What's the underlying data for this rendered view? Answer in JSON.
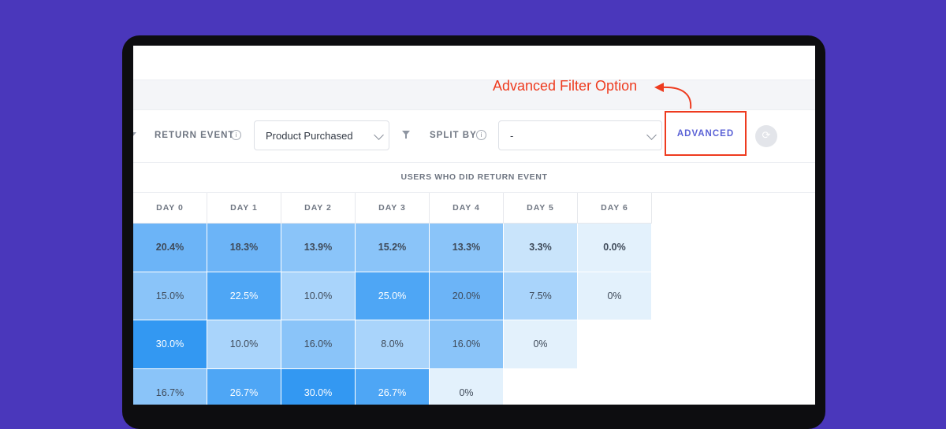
{
  "annotation": {
    "callout": "Advanced Filter Option",
    "color": "#ee3b1f"
  },
  "toolbar": {
    "return_event_label": "RETURN EVENT",
    "return_event_value": "Product Purchased",
    "split_by_label": "SPLIT BY",
    "split_by_value": "-",
    "advanced_label": "ADVANCED",
    "info_glyph": "i"
  },
  "table": {
    "heading": "USERS WHO DID RETURN EVENT",
    "columns": [
      "DAY 0",
      "DAY 1",
      "DAY 2",
      "DAY 3",
      "DAY 4",
      "DAY 5",
      "DAY 6"
    ],
    "rows": [
      [
        "20.4%",
        "18.3%",
        "13.9%",
        "15.2%",
        "13.3%",
        "3.3%",
        "0.0%"
      ],
      [
        "15.0%",
        "22.5%",
        "10.0%",
        "25.0%",
        "20.0%",
        "7.5%",
        "0%"
      ],
      [
        "30.0%",
        "10.0%",
        "16.0%",
        "8.0%",
        "16.0%",
        "0%"
      ],
      [
        "16.7%",
        "26.7%",
        "30.0%",
        "26.7%",
        "0%"
      ]
    ],
    "values": [
      [
        20.4,
        18.3,
        13.9,
        15.2,
        13.3,
        3.3,
        0.0
      ],
      [
        15.0,
        22.5,
        10.0,
        25.0,
        20.0,
        7.5,
        0
      ],
      [
        30.0,
        10.0,
        16.0,
        8.0,
        16.0,
        0
      ],
      [
        16.7,
        26.7,
        30.0,
        26.7,
        0
      ]
    ],
    "summary_row_bold": true
  },
  "colors": {
    "background": "#4a37bb",
    "accent": "#5b62d6",
    "cell_scale": [
      "#e3f1fc",
      "#c9e4fb",
      "#a9d4fb",
      "#8ac4f9",
      "#6cb4f7",
      "#4ea6f5",
      "#3398f2"
    ]
  }
}
